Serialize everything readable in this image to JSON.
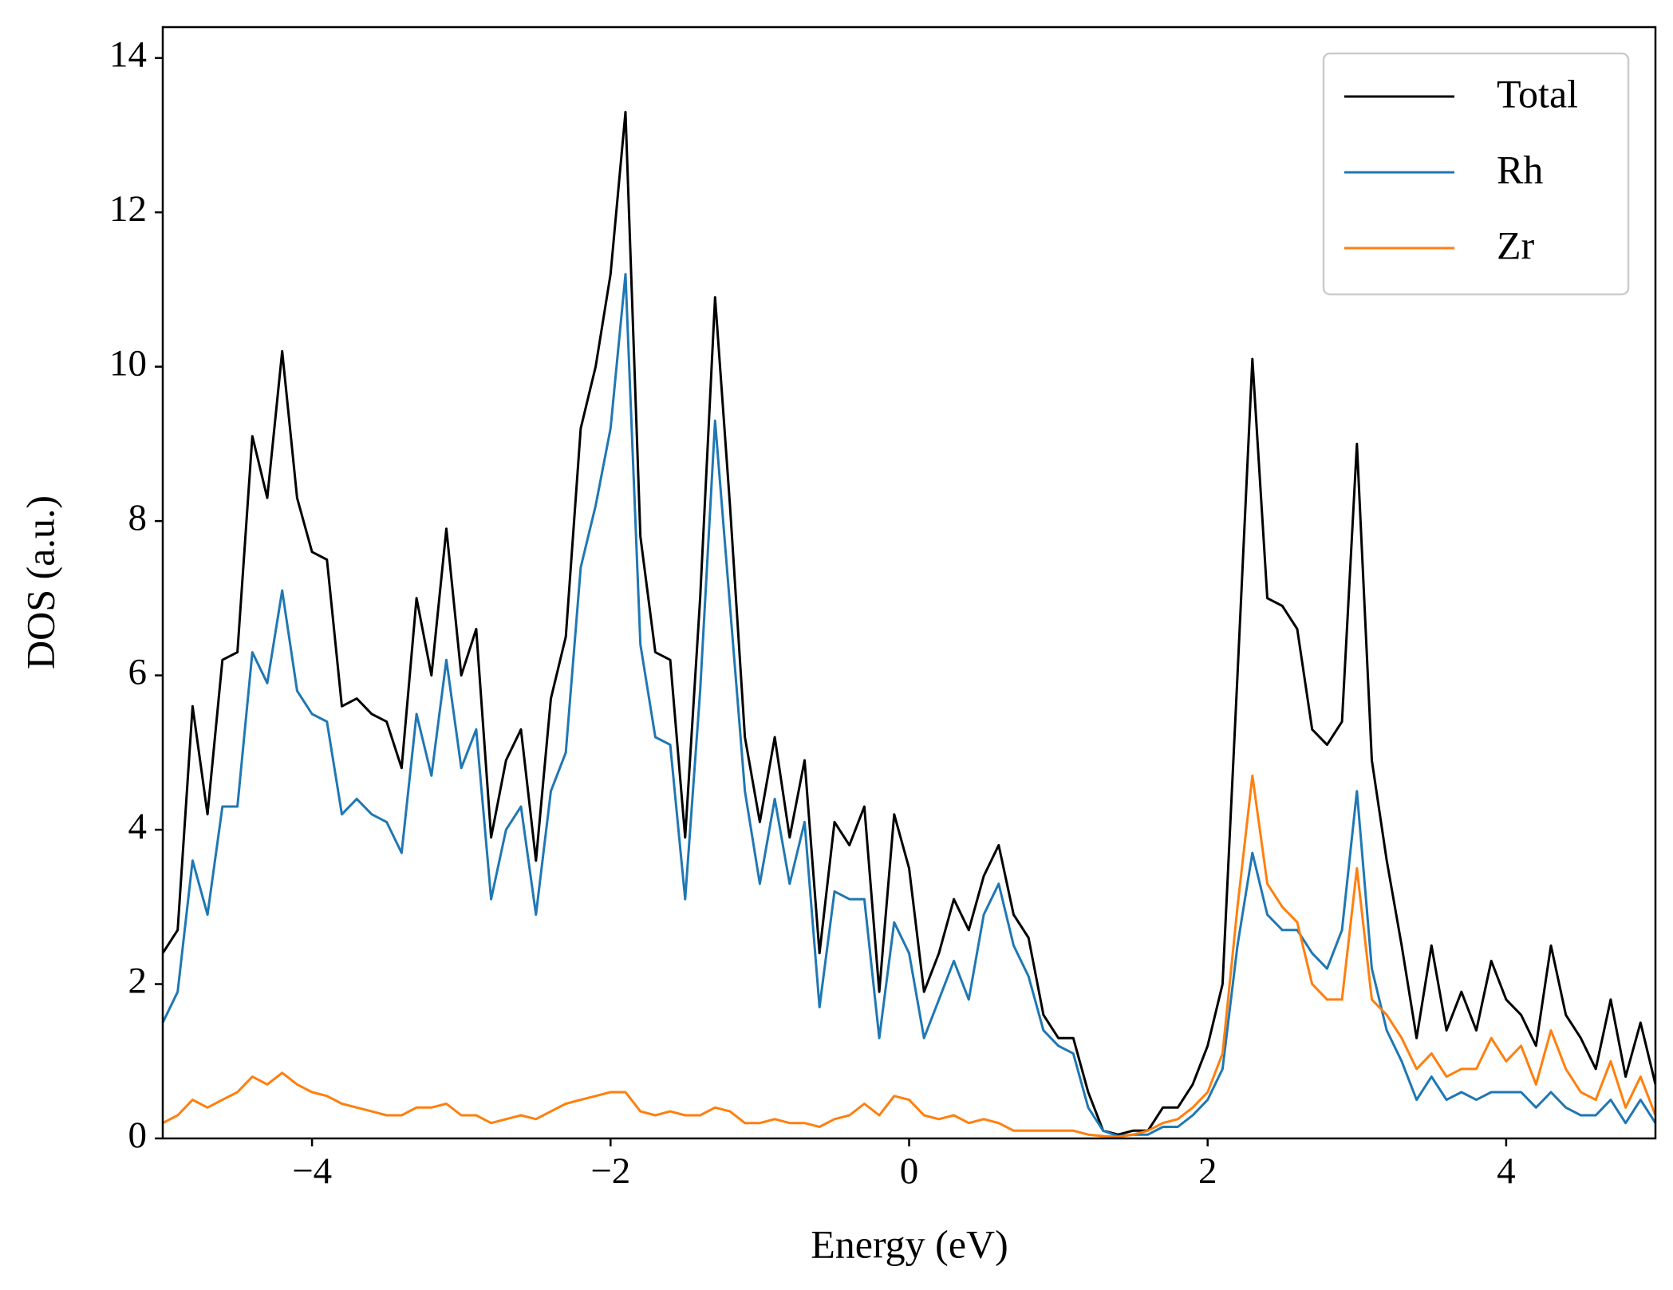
{
  "chart_data": {
    "type": "line",
    "xlabel": "Energy (eV)",
    "ylabel": "DOS (a.u.)",
    "x": [
      -5.0,
      -4.9,
      -4.8,
      -4.7,
      -4.6,
      -4.5,
      -4.4,
      -4.3,
      -4.2,
      -4.1,
      -4.0,
      -3.9,
      -3.8,
      -3.7,
      -3.6,
      -3.5,
      -3.4,
      -3.3,
      -3.2,
      -3.1,
      -3.0,
      -2.9,
      -2.8,
      -2.7,
      -2.6,
      -2.5,
      -2.4,
      -2.3,
      -2.2,
      -2.1,
      -2.0,
      -1.9,
      -1.8,
      -1.7,
      -1.6,
      -1.5,
      -1.4,
      -1.3,
      -1.2,
      -1.1,
      -1.0,
      -0.9,
      -0.8,
      -0.7,
      -0.6,
      -0.5,
      -0.4,
      -0.3,
      -0.2,
      -0.1,
      0.0,
      0.1,
      0.2,
      0.3,
      0.4,
      0.5,
      0.6,
      0.7,
      0.8,
      0.9,
      1.0,
      1.1,
      1.2,
      1.3,
      1.4,
      1.5,
      1.6,
      1.7,
      1.8,
      1.9,
      2.0,
      2.1,
      2.2,
      2.3,
      2.4,
      2.5,
      2.6,
      2.7,
      2.8,
      2.9,
      3.0,
      3.1,
      3.2,
      3.3,
      3.4,
      3.5,
      3.6,
      3.7,
      3.8,
      3.9,
      4.0,
      4.1,
      4.2,
      4.3,
      4.4,
      4.5,
      4.6,
      4.7,
      4.8,
      4.9,
      5.0
    ],
    "series": [
      {
        "name": "Total",
        "color": "#000000",
        "values": [
          2.4,
          2.7,
          5.6,
          4.2,
          6.2,
          6.3,
          9.1,
          8.3,
          10.2,
          8.3,
          7.6,
          7.5,
          5.6,
          5.7,
          5.5,
          5.4,
          4.8,
          7.0,
          6.0,
          7.9,
          6.0,
          6.6,
          3.9,
          4.9,
          5.3,
          3.6,
          5.7,
          6.5,
          9.2,
          10.0,
          11.2,
          13.3,
          7.8,
          6.3,
          6.2,
          3.9,
          7.0,
          10.9,
          8.2,
          5.2,
          4.1,
          5.2,
          3.9,
          4.9,
          2.4,
          4.1,
          3.8,
          4.3,
          1.9,
          4.2,
          3.5,
          1.9,
          2.4,
          3.1,
          2.7,
          3.4,
          3.8,
          2.9,
          2.6,
          1.6,
          1.3,
          1.3,
          0.6,
          0.1,
          0.05,
          0.1,
          0.1,
          0.4,
          0.4,
          0.7,
          1.2,
          2.0,
          6.0,
          10.1,
          7.0,
          6.9,
          6.6,
          5.3,
          5.1,
          5.4,
          9.0,
          4.9,
          3.6,
          2.5,
          1.3,
          2.5,
          1.4,
          1.9,
          1.4,
          2.3,
          1.8,
          1.6,
          1.2,
          2.5,
          1.6,
          1.3,
          0.9,
          1.8,
          0.8,
          1.5,
          0.7
        ]
      },
      {
        "name": "Rh",
        "color": "#1f77b4",
        "values": [
          1.5,
          1.9,
          3.6,
          2.9,
          4.3,
          4.3,
          6.3,
          5.9,
          7.1,
          5.8,
          5.5,
          5.4,
          4.2,
          4.4,
          4.2,
          4.1,
          3.7,
          5.5,
          4.7,
          6.2,
          4.8,
          5.3,
          3.1,
          4.0,
          4.3,
          2.9,
          4.5,
          5.0,
          7.4,
          8.2,
          9.2,
          11.2,
          6.4,
          5.2,
          5.1,
          3.1,
          5.8,
          9.3,
          6.9,
          4.5,
          3.3,
          4.4,
          3.3,
          4.1,
          1.7,
          3.2,
          3.1,
          3.1,
          1.3,
          2.8,
          2.4,
          1.3,
          1.8,
          2.3,
          1.8,
          2.9,
          3.3,
          2.5,
          2.1,
          1.4,
          1.2,
          1.1,
          0.4,
          0.1,
          0.03,
          0.05,
          0.05,
          0.15,
          0.15,
          0.3,
          0.5,
          0.9,
          2.5,
          3.7,
          2.9,
          2.7,
          2.7,
          2.4,
          2.2,
          2.7,
          4.5,
          2.2,
          1.4,
          1.0,
          0.5,
          0.8,
          0.5,
          0.6,
          0.5,
          0.6,
          0.6,
          0.6,
          0.4,
          0.6,
          0.4,
          0.3,
          0.3,
          0.5,
          0.2,
          0.5,
          0.2
        ]
      },
      {
        "name": "Zr",
        "color": "#ff7f0e",
        "values": [
          0.2,
          0.3,
          0.5,
          0.4,
          0.5,
          0.6,
          0.8,
          0.7,
          0.85,
          0.7,
          0.6,
          0.55,
          0.45,
          0.4,
          0.35,
          0.3,
          0.3,
          0.4,
          0.4,
          0.45,
          0.3,
          0.3,
          0.2,
          0.25,
          0.3,
          0.25,
          0.35,
          0.45,
          0.5,
          0.55,
          0.6,
          0.6,
          0.35,
          0.3,
          0.35,
          0.3,
          0.3,
          0.4,
          0.35,
          0.2,
          0.2,
          0.25,
          0.2,
          0.2,
          0.15,
          0.25,
          0.3,
          0.45,
          0.3,
          0.55,
          0.5,
          0.3,
          0.25,
          0.3,
          0.2,
          0.25,
          0.2,
          0.1,
          0.1,
          0.1,
          0.1,
          0.1,
          0.05,
          0.03,
          0.02,
          0.05,
          0.1,
          0.2,
          0.25,
          0.4,
          0.6,
          1.1,
          3.0,
          4.7,
          3.3,
          3.0,
          2.8,
          2.0,
          1.8,
          1.8,
          3.5,
          1.8,
          1.6,
          1.3,
          0.9,
          1.1,
          0.8,
          0.9,
          0.9,
          1.3,
          1.0,
          1.2,
          0.7,
          1.4,
          0.9,
          0.6,
          0.5,
          1.0,
          0.4,
          0.8,
          0.3
        ]
      }
    ],
    "xlim": [
      -5,
      5
    ],
    "xticks": [
      {
        "value": -4,
        "label": "−4"
      },
      {
        "value": -2,
        "label": "−2"
      },
      0,
      2,
      4
    ],
    "ylim": [
      0,
      14.4
    ],
    "yticks": [
      0,
      2,
      4,
      6,
      8,
      10,
      12,
      14
    ],
    "legend": "upper right",
    "grid": false
  }
}
